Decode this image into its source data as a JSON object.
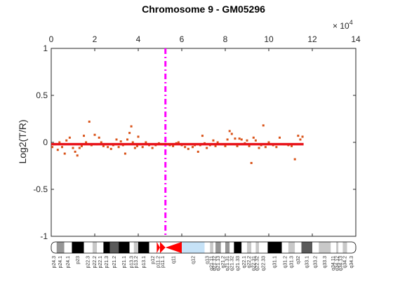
{
  "chart_data": {
    "type": "scatter",
    "title": "Chromosome 9 - GM05296",
    "xlabel": "",
    "ylabel": "Log2(T/R)",
    "x_axis_position": "top",
    "x_exponent_label": "× 10",
    "x_exponent_power": "4",
    "xlim": [
      0,
      14
    ],
    "ylim": [
      -1,
      1
    ],
    "x_ticks": [
      0,
      2,
      4,
      6,
      8,
      10,
      12,
      14
    ],
    "x_tick_labels": [
      "0",
      "2",
      "4",
      "6",
      "8",
      "10",
      "12",
      "14"
    ],
    "y_ticks": [
      1,
      0.5,
      0,
      -0.5,
      -1
    ],
    "y_tick_labels": [
      "1",
      "0.5",
      "0",
      "-0.5",
      "-1"
    ],
    "grid": false,
    "colors": {
      "points": "#d95319",
      "segment": "#e8141c",
      "centromere": "#ff00ff",
      "axes": "#262626"
    },
    "series": [
      {
        "values": [
          [
            0.05,
            -0.05
          ],
          [
            0.15,
            -0.02
          ],
          [
            0.3,
            -0.08
          ],
          [
            0.38,
            0.0
          ],
          [
            0.5,
            -0.05
          ],
          [
            0.62,
            -0.12
          ],
          [
            0.7,
            0.02
          ],
          [
            0.85,
            0.05
          ],
          [
            1.0,
            -0.06
          ],
          [
            1.1,
            -0.1
          ],
          [
            1.2,
            -0.14
          ],
          [
            1.3,
            -0.06
          ],
          [
            1.4,
            -0.04
          ],
          [
            1.5,
            0.07
          ],
          [
            1.6,
            0.0
          ],
          [
            1.75,
            0.22
          ],
          [
            1.85,
            -0.03
          ],
          [
            2.0,
            0.08
          ],
          [
            2.1,
            -0.02
          ],
          [
            2.2,
            0.05
          ],
          [
            2.3,
            0.0
          ],
          [
            2.4,
            -0.04
          ],
          [
            2.5,
            -0.02
          ],
          [
            2.6,
            -0.05
          ],
          [
            2.75,
            -0.07
          ],
          [
            2.85,
            -0.03
          ],
          [
            3.0,
            0.03
          ],
          [
            3.1,
            -0.05
          ],
          [
            3.2,
            0.01
          ],
          [
            3.3,
            -0.03
          ],
          [
            3.4,
            -0.12
          ],
          [
            3.5,
            0.03
          ],
          [
            3.6,
            0.1
          ],
          [
            3.68,
            0.17
          ],
          [
            3.75,
            0.0
          ],
          [
            3.85,
            -0.06
          ],
          [
            3.95,
            -0.04
          ],
          [
            4.0,
            0.06
          ],
          [
            4.1,
            -0.02
          ],
          [
            4.2,
            -0.05
          ],
          [
            4.35,
            0.0
          ],
          [
            4.5,
            -0.03
          ],
          [
            4.65,
            -0.06
          ],
          [
            4.8,
            -0.03
          ],
          [
            4.95,
            -0.01
          ],
          [
            5.1,
            -0.02
          ],
          [
            5.45,
            -0.03
          ],
          [
            5.6,
            -0.04
          ],
          [
            5.75,
            -0.01
          ],
          [
            5.85,
            0.0
          ],
          [
            6.0,
            -0.03
          ],
          [
            6.15,
            -0.05
          ],
          [
            6.3,
            -0.07
          ],
          [
            6.5,
            -0.05
          ],
          [
            6.6,
            -0.03
          ],
          [
            6.75,
            -0.1
          ],
          [
            6.85,
            -0.03
          ],
          [
            6.95,
            0.07
          ],
          [
            7.05,
            -0.01
          ],
          [
            7.15,
            -0.06
          ],
          [
            7.3,
            -0.03
          ],
          [
            7.45,
            0.02
          ],
          [
            7.55,
            -0.04
          ],
          [
            7.65,
            0.0
          ],
          [
            7.85,
            -0.02
          ],
          [
            8.0,
            -0.04
          ],
          [
            8.1,
            0.03
          ],
          [
            8.2,
            0.12
          ],
          [
            8.3,
            0.09
          ],
          [
            8.45,
            0.04
          ],
          [
            8.55,
            -0.04
          ],
          [
            8.65,
            0.04
          ],
          [
            8.75,
            0.03
          ],
          [
            8.9,
            -0.01
          ],
          [
            9.0,
            0.02
          ],
          [
            9.1,
            -0.04
          ],
          [
            9.2,
            -0.22
          ],
          [
            9.3,
            0.05
          ],
          [
            9.4,
            0.02
          ],
          [
            9.55,
            -0.06
          ],
          [
            9.65,
            -0.03
          ],
          [
            9.75,
            0.18
          ],
          [
            9.85,
            -0.05
          ],
          [
            10.0,
            0.0
          ],
          [
            10.2,
            -0.03
          ],
          [
            10.35,
            -0.05
          ],
          [
            10.5,
            0.05
          ],
          [
            10.7,
            -0.02
          ],
          [
            10.9,
            -0.03
          ],
          [
            11.05,
            -0.04
          ],
          [
            11.2,
            -0.18
          ],
          [
            11.35,
            0.07
          ],
          [
            11.45,
            0.03
          ],
          [
            11.55,
            0.06
          ]
        ]
      }
    ],
    "segments": [
      {
        "x_start": 0.0,
        "x_end": 11.6,
        "value": -0.02
      }
    ],
    "centromere_x": 5.25,
    "ideogram": {
      "x_range": [
        0,
        14.0
      ],
      "bands": [
        {
          "name": "p24.3",
          "start": 0.0,
          "end": 0.25,
          "stain": "gneg"
        },
        {
          "name": "p24.1",
          "start": 0.25,
          "end": 0.6,
          "stain": "gpos50"
        },
        {
          "name": "p24.1",
          "start": 0.6,
          "end": 0.95,
          "stain": "gneg"
        },
        {
          "name": "p23",
          "start": 0.95,
          "end": 1.5,
          "stain": "gpos100"
        },
        {
          "name": "p22.3",
          "start": 1.5,
          "end": 1.9,
          "stain": "gneg"
        },
        {
          "name": "p22.2",
          "start": 1.9,
          "end": 2.1,
          "stain": "gpos25"
        },
        {
          "name": "p22.1",
          "start": 2.1,
          "end": 2.4,
          "stain": "gneg"
        },
        {
          "name": "p21.3",
          "start": 2.4,
          "end": 2.7,
          "stain": "gpos100"
        },
        {
          "name": "p21.2",
          "start": 2.7,
          "end": 3.1,
          "stain": "gpos75"
        },
        {
          "name": "p21.1",
          "start": 3.1,
          "end": 3.6,
          "stain": "gpos100"
        },
        {
          "name": "p13.3",
          "start": 3.6,
          "end": 3.8,
          "stain": "gneg"
        },
        {
          "name": "p13.2",
          "start": 3.8,
          "end": 4.0,
          "stain": "gpos25"
        },
        {
          "name": "p13.1",
          "start": 4.0,
          "end": 4.5,
          "stain": "gpos100"
        },
        {
          "name": "p12",
          "start": 4.5,
          "end": 4.85,
          "stain": "gneg"
        },
        {
          "name": "p11.2",
          "start": 4.85,
          "end": 5.0,
          "stain": "acen"
        },
        {
          "name": "p11.1",
          "start": 5.0,
          "end": 5.25,
          "stain": "acen"
        },
        {
          "name": "q11",
          "start": 5.25,
          "end": 6.0,
          "stain": "acen"
        },
        {
          "name": "q12",
          "start": 6.0,
          "end": 7.05,
          "stain": "gvar"
        },
        {
          "name": "q13",
          "start": 7.05,
          "end": 7.3,
          "stain": "gneg"
        },
        {
          "name": "q21.11",
          "start": 7.3,
          "end": 7.45,
          "stain": "gpos25"
        },
        {
          "name": "q21.12",
          "start": 7.45,
          "end": 7.55,
          "stain": "gneg"
        },
        {
          "name": "q21.13",
          "start": 7.55,
          "end": 7.8,
          "stain": "gpos50"
        },
        {
          "name": "q21.2",
          "start": 7.8,
          "end": 8.0,
          "stain": "gneg"
        },
        {
          "name": "q21.31",
          "start": 8.0,
          "end": 8.2,
          "stain": "gpos50"
        },
        {
          "name": "q21.32",
          "start": 8.2,
          "end": 8.4,
          "stain": "gneg"
        },
        {
          "name": "q21.33",
          "start": 8.4,
          "end": 8.75,
          "stain": "gpos100"
        },
        {
          "name": "q22.1",
          "start": 8.75,
          "end": 9.0,
          "stain": "gneg"
        },
        {
          "name": "q22.2",
          "start": 9.0,
          "end": 9.2,
          "stain": "gpos25"
        },
        {
          "name": "q22.31",
          "start": 9.2,
          "end": 9.4,
          "stain": "gneg"
        },
        {
          "name": "q22.32",
          "start": 9.4,
          "end": 9.55,
          "stain": "gpos25"
        },
        {
          "name": "q22.33",
          "start": 9.55,
          "end": 9.95,
          "stain": "gneg"
        },
        {
          "name": "q31.1",
          "start": 9.95,
          "end": 10.6,
          "stain": "gpos100"
        },
        {
          "name": "q31.2",
          "start": 10.6,
          "end": 10.9,
          "stain": "gneg"
        },
        {
          "name": "q31.3",
          "start": 10.9,
          "end": 11.2,
          "stain": "gpos25"
        },
        {
          "name": "q32",
          "start": 11.2,
          "end": 11.5,
          "stain": "gneg"
        },
        {
          "name": "q33.1",
          "start": 11.5,
          "end": 12.0,
          "stain": "gpos75"
        },
        {
          "name": "q33.2",
          "start": 12.0,
          "end": 12.3,
          "stain": "gneg"
        },
        {
          "name": "q33.3",
          "start": 12.3,
          "end": 12.85,
          "stain": "gpos25"
        },
        {
          "name": "q34.11",
          "start": 12.85,
          "end": 13.1,
          "stain": "gneg"
        },
        {
          "name": "q34.12",
          "start": 13.1,
          "end": 13.2,
          "stain": "gpos25"
        },
        {
          "name": "q34.13",
          "start": 13.2,
          "end": 13.4,
          "stain": "gneg"
        },
        {
          "name": "q34.2",
          "start": 13.4,
          "end": 13.6,
          "stain": "gpos25"
        },
        {
          "name": "q34.3",
          "start": 13.6,
          "end": 14.0,
          "stain": "gneg"
        }
      ]
    }
  }
}
